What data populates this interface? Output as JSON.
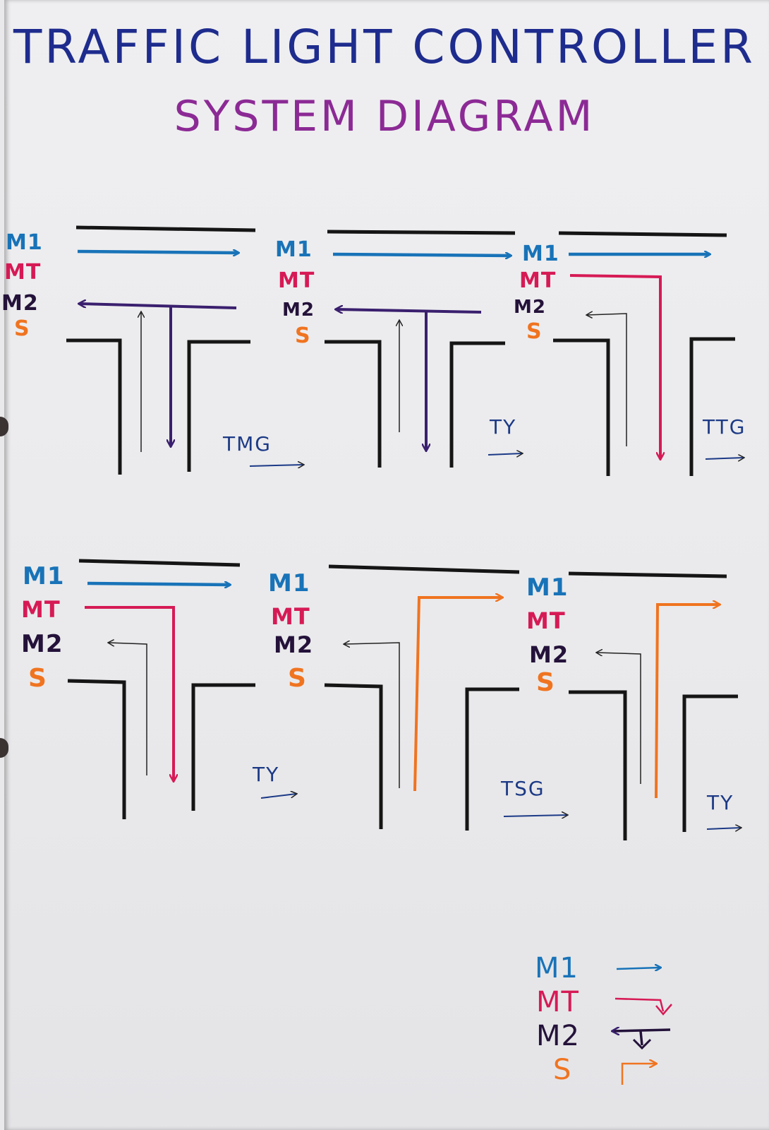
{
  "title": {
    "line1": "TRAFFIC LIGHT CONTROLLER",
    "line2": "SYSTEM DIAGRAM"
  },
  "lane_labels": {
    "m1": "M1",
    "mt": "MT",
    "m2": "M2",
    "s": "S"
  },
  "panels": [
    {
      "id": 1,
      "timer": "TMG",
      "active": [
        "M1",
        "M2"
      ]
    },
    {
      "id": 2,
      "timer": "TY",
      "active": [
        "M1",
        "M2"
      ]
    },
    {
      "id": 3,
      "timer": "TTG",
      "active": [
        "M1",
        "MT"
      ]
    },
    {
      "id": 4,
      "timer": "TY",
      "active": [
        "M1",
        "MT"
      ]
    },
    {
      "id": 5,
      "timer": "TSG",
      "active": [
        "S"
      ]
    },
    {
      "id": 6,
      "timer": "TY",
      "active": [
        "S"
      ]
    }
  ],
  "legend": [
    {
      "label": "M1",
      "icon": "straight-arrow-icon"
    },
    {
      "label": "MT",
      "icon": "turn-down-arrow-icon"
    },
    {
      "label": "M2",
      "icon": "left-and-down-arrow-icon"
    },
    {
      "label": "S",
      "icon": "turn-up-right-arrow-icon"
    }
  ],
  "colors": {
    "m1": "#1873b8",
    "mt": "#d61a55",
    "m2": "#3a1f6e",
    "s": "#f07420",
    "road": "#151515",
    "title1": "#1e2c8e",
    "title2": "#8c2a95"
  }
}
